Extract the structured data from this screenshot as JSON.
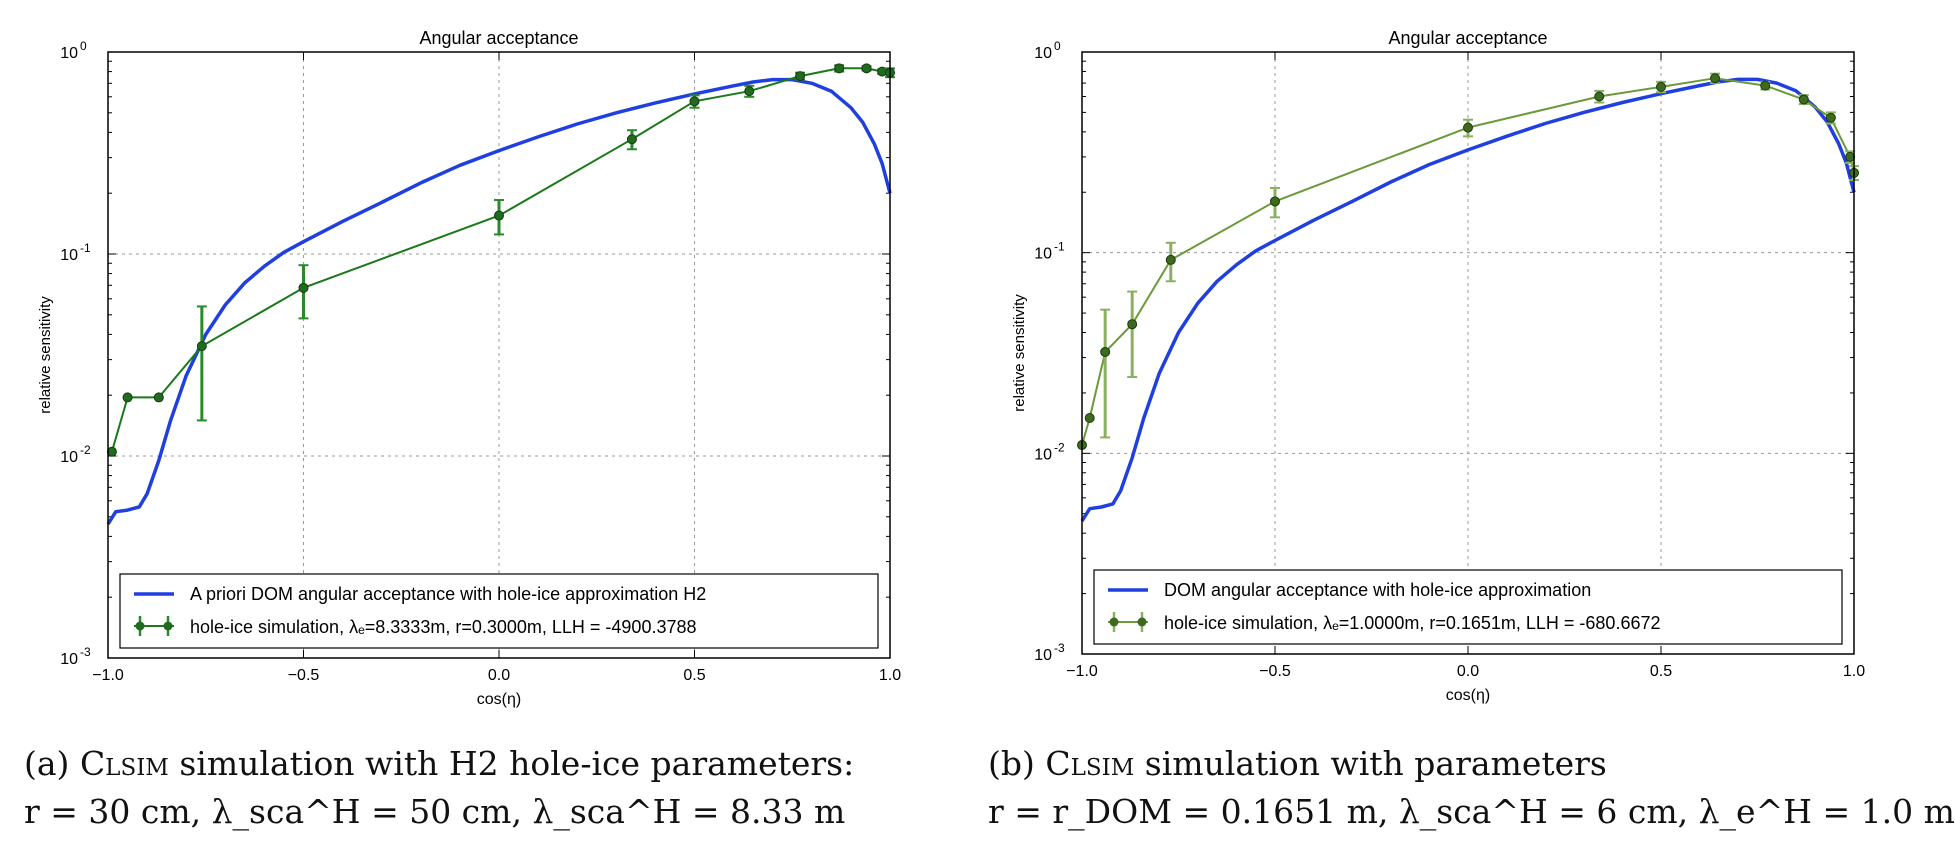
{
  "chart_data": [
    {
      "type": "line",
      "title": "Angular acceptance",
      "xlabel": "cos(η)",
      "ylabel": "relative sensitivity",
      "xlim": [
        -1.0,
        1.0
      ],
      "ylim": [
        0.001,
        1.0
      ],
      "yscale": "log",
      "xticks": [
        "−1.0",
        "−0.5",
        "0.0",
        "0.5",
        "1.0"
      ],
      "yticks": [
        {
          "base": "10",
          "exp": "0"
        },
        {
          "base": "10",
          "exp": "-1"
        },
        {
          "base": "10",
          "exp": "-2"
        },
        {
          "base": "10",
          "exp": "-3"
        }
      ],
      "grid": true,
      "legend_position": "lower-center",
      "colors": {
        "prior": "#1f3fe0",
        "sim": "#1a7a1a",
        "sim_marker": "#1f6b1f",
        "sim_err": "#2a8a2a"
      },
      "series": [
        {
          "name": "A priori DOM angular acceptance with hole-ice approximation H2",
          "kind": "curve",
          "x": [
            -1.0,
            -0.98,
            -0.95,
            -0.92,
            -0.9,
            -0.87,
            -0.84,
            -0.8,
            -0.75,
            -0.7,
            -0.65,
            -0.6,
            -0.55,
            -0.5,
            -0.4,
            -0.3,
            -0.2,
            -0.1,
            0.0,
            0.1,
            0.2,
            0.3,
            0.4,
            0.5,
            0.6,
            0.65,
            0.7,
            0.75,
            0.8,
            0.85,
            0.9,
            0.93,
            0.96,
            0.98,
            1.0
          ],
          "y": [
            0.0046,
            0.0053,
            0.0054,
            0.0056,
            0.0065,
            0.0095,
            0.015,
            0.025,
            0.04,
            0.056,
            0.072,
            0.087,
            0.102,
            0.115,
            0.145,
            0.18,
            0.225,
            0.275,
            0.325,
            0.38,
            0.44,
            0.5,
            0.56,
            0.62,
            0.68,
            0.71,
            0.73,
            0.73,
            0.7,
            0.64,
            0.53,
            0.45,
            0.35,
            0.28,
            0.2
          ]
        },
        {
          "name": "hole-ice simulation, λₑ=8.3333m, r=0.3000m, LLH = -4900.3788",
          "kind": "points",
          "x": [
            -0.99,
            -0.95,
            -0.87,
            -0.76,
            -0.5,
            0.0,
            0.34,
            0.5,
            0.64,
            0.77,
            0.87,
            0.94,
            0.98,
            1.0
          ],
          "y": [
            0.0105,
            0.0195,
            0.0195,
            0.035,
            0.068,
            0.155,
            0.37,
            0.57,
            0.64,
            0.76,
            0.83,
            0.83,
            0.8,
            0.79
          ],
          "err": [
            0.0,
            0.0,
            0.0,
            0.02,
            0.02,
            0.03,
            0.04,
            0.04,
            0.04,
            0.03,
            0.03,
            0.02,
            0.02,
            0.04
          ]
        }
      ]
    },
    {
      "type": "line",
      "title": "Angular acceptance",
      "xlabel": "cos(η)",
      "ylabel": "relative sensitivity",
      "xlim": [
        -1.0,
        1.0
      ],
      "ylim": [
        0.001,
        1.0
      ],
      "yscale": "log",
      "xticks": [
        "−1.0",
        "−0.5",
        "0.0",
        "0.5",
        "1.0"
      ],
      "yticks": [
        {
          "base": "10",
          "exp": "0"
        },
        {
          "base": "10",
          "exp": "-1"
        },
        {
          "base": "10",
          "exp": "-2"
        },
        {
          "base": "10",
          "exp": "-3"
        }
      ],
      "grid": true,
      "legend_position": "lower-center",
      "colors": {
        "prior": "#1f3fe0",
        "sim": "#6a9a3a",
        "sim_marker": "#3d6a1f",
        "sim_err": "#8ab060"
      },
      "series": [
        {
          "name": "DOM angular acceptance with hole-ice approximation",
          "kind": "curve",
          "x": [
            -1.0,
            -0.98,
            -0.95,
            -0.92,
            -0.9,
            -0.87,
            -0.84,
            -0.8,
            -0.75,
            -0.7,
            -0.65,
            -0.6,
            -0.55,
            -0.5,
            -0.4,
            -0.3,
            -0.2,
            -0.1,
            0.0,
            0.1,
            0.2,
            0.3,
            0.4,
            0.5,
            0.6,
            0.65,
            0.7,
            0.75,
            0.8,
            0.85,
            0.9,
            0.93,
            0.96,
            0.98,
            1.0
          ],
          "y": [
            0.0046,
            0.0053,
            0.0054,
            0.0056,
            0.0065,
            0.0095,
            0.015,
            0.025,
            0.04,
            0.056,
            0.072,
            0.087,
            0.102,
            0.115,
            0.145,
            0.18,
            0.225,
            0.275,
            0.325,
            0.38,
            0.44,
            0.5,
            0.56,
            0.62,
            0.68,
            0.71,
            0.73,
            0.73,
            0.7,
            0.64,
            0.53,
            0.45,
            0.35,
            0.28,
            0.2
          ]
        },
        {
          "name": "hole-ice simulation, λₑ=1.0000m, r=0.1651m, LLH = -680.6672",
          "kind": "points",
          "x": [
            -1.0,
            -0.98,
            -0.94,
            -0.87,
            -0.77,
            -0.5,
            0.0,
            0.34,
            0.5,
            0.64,
            0.77,
            0.87,
            0.94,
            0.99,
            1.0
          ],
          "y": [
            0.011,
            0.015,
            0.032,
            0.044,
            0.092,
            0.18,
            0.42,
            0.6,
            0.67,
            0.74,
            0.68,
            0.58,
            0.47,
            0.3,
            0.25
          ],
          "err": [
            0.0,
            0.0,
            0.02,
            0.02,
            0.02,
            0.03,
            0.04,
            0.04,
            0.04,
            0.04,
            0.03,
            0.03,
            0.03,
            0.02,
            0.02
          ]
        }
      ]
    }
  ],
  "captions": [
    {
      "label": "(a)",
      "code": "Clsim",
      "line1_rest": "simulation with H2 hole-ice parameters:",
      "line2": "r = 30 cm, λ_sca^H = 50 cm, λ_sca^H = 8.33 m"
    },
    {
      "label": "(b)",
      "code": "Clsim",
      "line1_rest": "simulation with parameters",
      "line2": "r = r_DOM = 0.1651 m, λ_sca^H = 6 cm, λ_e^H = 1.0 m"
    }
  ]
}
